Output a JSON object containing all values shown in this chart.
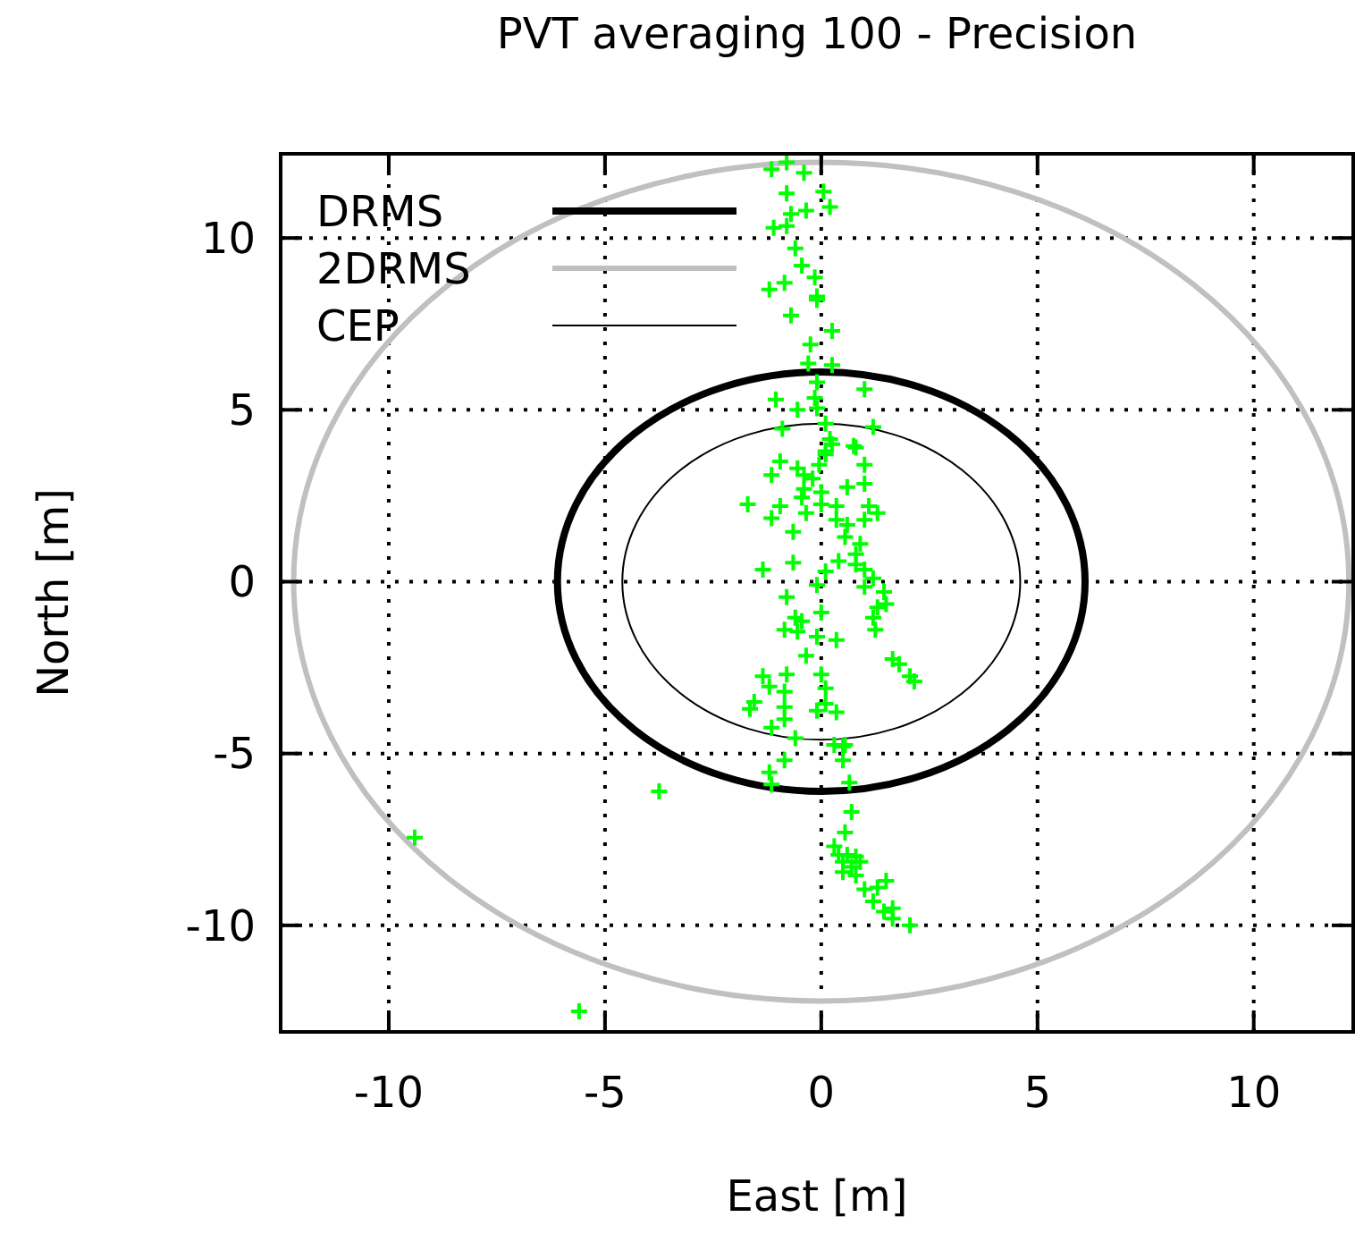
{
  "chart_data": {
    "type": "scatter",
    "title": "PVT averaging 100 - Precision",
    "xlabel": "East [m]",
    "ylabel": "North [m]",
    "xlim": [
      -12.5,
      12.3
    ],
    "ylim": [
      -13.1,
      12.45
    ],
    "xticks": [
      -10,
      -5,
      0,
      5,
      10
    ],
    "yticks": [
      -10,
      -5,
      0,
      5,
      10
    ],
    "grid": true,
    "marker": "cross",
    "annotations": [
      "DRMS",
      "2DRMS",
      "CEP"
    ],
    "series": [
      {
        "color": "#00ff00",
        "x": [
          -1.15,
          -0.8,
          -0.4,
          -0.8,
          0.05,
          0.2,
          -0.35,
          -0.7,
          -1.1,
          -0.8,
          -0.6,
          -0.45,
          -0.15,
          -0.85,
          -1.2,
          -0.1,
          -0.1,
          -0.7,
          0.25,
          -0.25,
          -0.3,
          0.25,
          -0.1,
          1.0,
          -1.05,
          -0.15,
          -0.55,
          -0.1,
          -0.9,
          0.1,
          1.2,
          0.2,
          0.25,
          0.75,
          0.1,
          0.1,
          0.8,
          -0.95,
          -1.15,
          -0.55,
          -0.4,
          -0.2,
          -0.05,
          1.0,
          1.0,
          0.6,
          -0.4,
          0.0,
          -0.45,
          -1.7,
          -0.95,
          0.0,
          0.35,
          1.1,
          1.3,
          -1.15,
          -0.35,
          0.35,
          1.0,
          0.6,
          -0.65,
          0.55,
          0.9,
          0.8,
          0.4,
          -0.65,
          0.8,
          1.0,
          -1.35,
          0.1,
          1.2,
          -0.1,
          1.0,
          1.45,
          -0.8,
          1.5,
          1.3,
          0.0,
          1.2,
          -0.6,
          -0.45,
          1.25,
          -0.85,
          -0.55,
          -0.1,
          0.35,
          -0.35,
          1.65,
          1.8,
          -0.8,
          0.0,
          2.05,
          -1.35,
          2.15,
          -1.2,
          0.1,
          -0.85,
          -1.55,
          0.1,
          -0.85,
          -1.65,
          -0.1,
          0.35,
          -0.85,
          -1.15,
          -0.6,
          0.3,
          0.55,
          0.5,
          -0.85,
          0.5,
          -1.2,
          -1.15,
          0.65,
          -3.75,
          0.7,
          0.55,
          0.3,
          0.4,
          0.6,
          0.8,
          0.5,
          0.9,
          0.7,
          0.5,
          0.8,
          1.5,
          1.3,
          1.0,
          1.2,
          1.65,
          1.45,
          1.65,
          2.05,
          -5.6,
          -9.4
        ],
        "values": [
          12.0,
          12.2,
          11.9,
          11.3,
          11.35,
          10.9,
          10.8,
          10.7,
          10.3,
          10.35,
          9.7,
          9.2,
          8.85,
          8.7,
          8.5,
          8.3,
          8.2,
          7.75,
          7.3,
          6.9,
          6.35,
          6.3,
          5.8,
          5.6,
          5.3,
          5.35,
          5.0,
          5.05,
          4.45,
          4.6,
          4.5,
          4.15,
          4.0,
          3.95,
          3.8,
          3.7,
          3.9,
          3.5,
          3.1,
          3.3,
          3.1,
          3.0,
          3.4,
          3.4,
          2.85,
          2.75,
          2.7,
          2.6,
          2.45,
          2.25,
          2.2,
          2.25,
          2.2,
          2.2,
          2.0,
          1.85,
          2.0,
          1.8,
          1.8,
          1.65,
          1.45,
          1.3,
          1.1,
          0.8,
          0.6,
          0.55,
          0.5,
          0.35,
          0.35,
          0.3,
          0.1,
          -0.1,
          -0.15,
          -0.3,
          -0.45,
          -0.65,
          -0.75,
          -0.9,
          -1.05,
          -1.05,
          -1.15,
          -1.4,
          -1.4,
          -1.45,
          -1.6,
          -1.7,
          -2.15,
          -2.25,
          -2.4,
          -2.7,
          -2.7,
          -2.75,
          -2.75,
          -2.9,
          -3.05,
          -3.1,
          -3.2,
          -3.5,
          -3.55,
          -3.65,
          -3.7,
          -3.75,
          -3.8,
          -4.0,
          -4.25,
          -4.55,
          -4.75,
          -4.75,
          -4.8,
          -5.2,
          -5.2,
          -5.55,
          -5.9,
          -5.85,
          -6.1,
          -6.7,
          -7.3,
          -7.7,
          -7.95,
          -7.95,
          -8.0,
          -8.15,
          -8.15,
          -8.3,
          -8.45,
          -8.55,
          -8.7,
          -8.9,
          -8.95,
          -9.3,
          -9.5,
          -9.6,
          -9.8,
          -10.0,
          -12.5,
          -7.45
        ]
      }
    ]
  }
}
